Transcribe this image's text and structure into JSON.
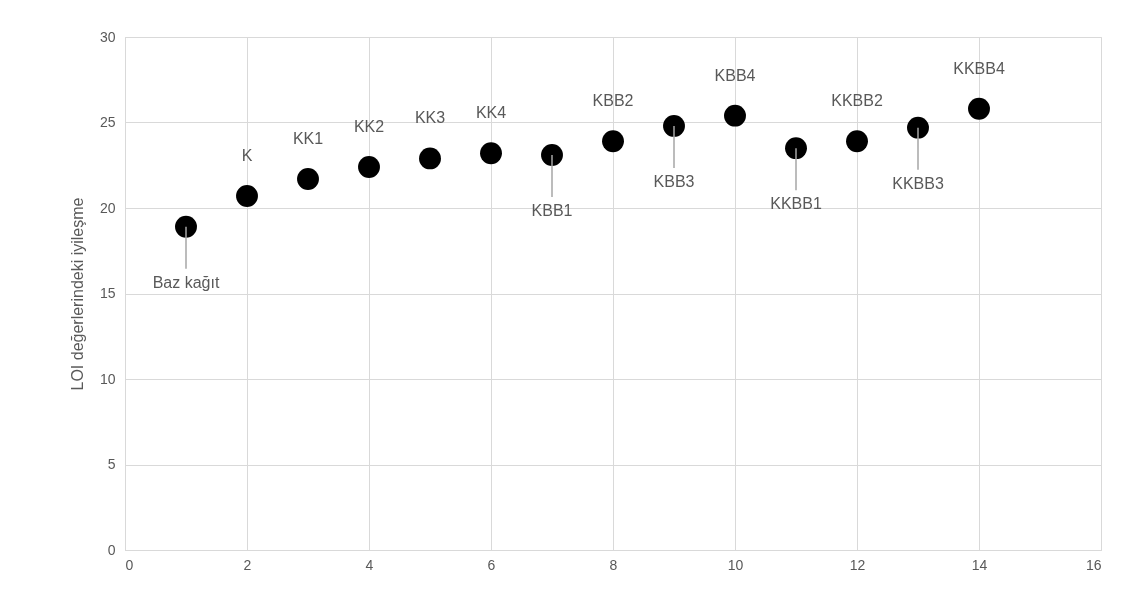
{
  "chart_data": {
    "type": "scatter",
    "ylabel": "LOI değerlerindeki iyileşme",
    "x": [
      1,
      2,
      3,
      4,
      5,
      6,
      7,
      8,
      9,
      10,
      11,
      12,
      13,
      14
    ],
    "series": [
      {
        "color": "#000000",
        "values": [
          18.9,
          20.7,
          21.7,
          22.4,
          22.9,
          23.2,
          23.1,
          23.9,
          24.8,
          25.4,
          23.5,
          23.9,
          24.7,
          25.8
        ]
      }
    ],
    "xlim": [
      0,
      16
    ],
    "xticks": [
      0,
      2,
      4,
      6,
      8,
      10,
      12,
      14,
      16
    ],
    "ylim": [
      0,
      30
    ],
    "yticks": [
      0,
      5,
      10,
      15,
      20,
      25,
      30
    ],
    "grid": true,
    "marker": "circle",
    "annotations": [
      {
        "text": "Baz kağıt",
        "x": 1,
        "y": 18.9
      },
      {
        "text": "K",
        "x": 2,
        "y": 20.7
      },
      {
        "text": "KK1",
        "x": 3,
        "y": 21.7
      },
      {
        "text": "KK2",
        "x": 4,
        "y": 22.4
      },
      {
        "text": "KK3",
        "x": 5,
        "y": 22.9
      },
      {
        "text": "KK4",
        "x": 6,
        "y": 23.2
      },
      {
        "text": "KBB1",
        "x": 7,
        "y": 23.1
      },
      {
        "text": "KBB2",
        "x": 8,
        "y": 23.9
      },
      {
        "text": "KBB3",
        "x": 9,
        "y": 24.8
      },
      {
        "text": "KBB4",
        "x": 10,
        "y": 25.4
      },
      {
        "text": "KKBB1",
        "x": 11,
        "y": 23.5
      },
      {
        "text": "KKBB2",
        "x": 12,
        "y": 23.9
      },
      {
        "text": "KKBB3",
        "x": 13,
        "y": 24.7
      },
      {
        "text": "KKBB4",
        "x": 14,
        "y": 25.8
      }
    ]
  }
}
